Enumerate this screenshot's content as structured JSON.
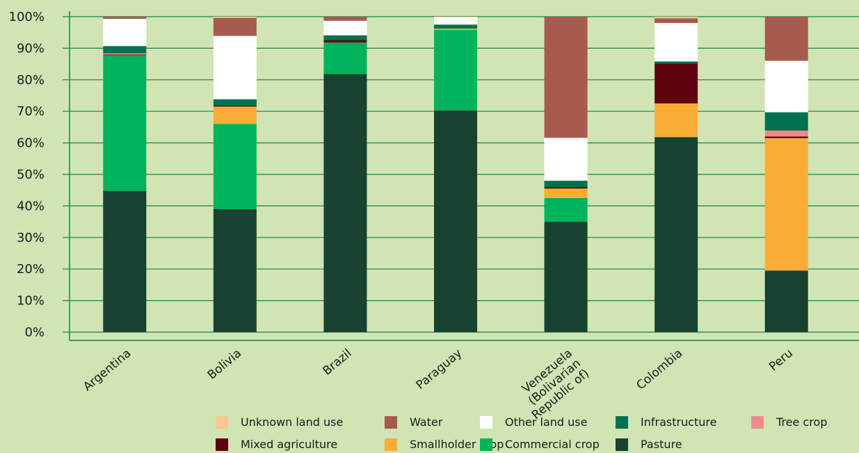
{
  "chart_data": {
    "type": "bar",
    "stacked": true,
    "categories": [
      "Argentina",
      "Bolivia",
      "Brazil",
      "Paraguay",
      "Venezuela (Bolivarian Republic of)",
      "Colombia",
      "Peru"
    ],
    "category_label_lines": [
      [
        "Argentina"
      ],
      [
        "Bolivia"
      ],
      [
        "Brazil"
      ],
      [
        "Paraguay"
      ],
      [
        "Venezuela",
        "(Bolivarian",
        "Republic of)"
      ],
      [
        "Colombia"
      ],
      [
        "Peru"
      ]
    ],
    "y_ticks": [
      "0%",
      "10%",
      "20%",
      "30%",
      "40%",
      "50%",
      "60%",
      "70%",
      "80%",
      "90%",
      "100%"
    ],
    "ylim": [
      0,
      100
    ],
    "grid": true,
    "legend_position": "bottom",
    "series": [
      {
        "name": "Pasture",
        "color": "#17422f",
        "values": [
          44.8,
          39.0,
          81.8,
          70.3,
          35.0,
          61.8,
          19.5
        ]
      },
      {
        "name": "Commercial crop",
        "color": "#00b35b",
        "values": [
          43.0,
          27.0,
          10.0,
          25.5,
          7.5,
          0.0,
          0.0
        ]
      },
      {
        "name": "Smallholder crop",
        "color": "#f9ad36",
        "values": [
          0.0,
          5.5,
          0.0,
          0.4,
          3.0,
          10.7,
          42.0
        ]
      },
      {
        "name": "Mixed agriculture",
        "color": "#5f0311",
        "values": [
          0.2,
          0.3,
          0.8,
          0.0,
          0.5,
          12.7,
          0.5
        ]
      },
      {
        "name": "Tree crop",
        "color": "#ef8a8e",
        "values": [
          0.4,
          0.0,
          0.0,
          0.0,
          0.0,
          0.0,
          1.9
        ]
      },
      {
        "name": "Infrastructure",
        "color": "#00714f",
        "values": [
          2.3,
          2.0,
          1.5,
          1.3,
          2.0,
          0.6,
          5.8
        ]
      },
      {
        "name": "Other land use",
        "color": "#ffffff",
        "values": [
          8.6,
          20.1,
          4.6,
          2.3,
          13.6,
          12.2,
          16.3
        ]
      },
      {
        "name": "Water",
        "color": "#a65b4e",
        "values": [
          0.7,
          5.7,
          1.3,
          0.0,
          38.4,
          1.5,
          14.0
        ]
      },
      {
        "name": "Unknown land use",
        "color": "#f6c792",
        "values": [
          0.0,
          0.4,
          0.0,
          0.2,
          0.0,
          0.5,
          0.0
        ]
      }
    ],
    "legend_rows": [
      [
        "Unknown land use",
        "Water",
        "Other land use",
        "Infrastructure",
        "Tree crop"
      ],
      [
        "Mixed agriculture",
        "Smallholder crop",
        "Commercial crop",
        "Pasture"
      ]
    ]
  }
}
